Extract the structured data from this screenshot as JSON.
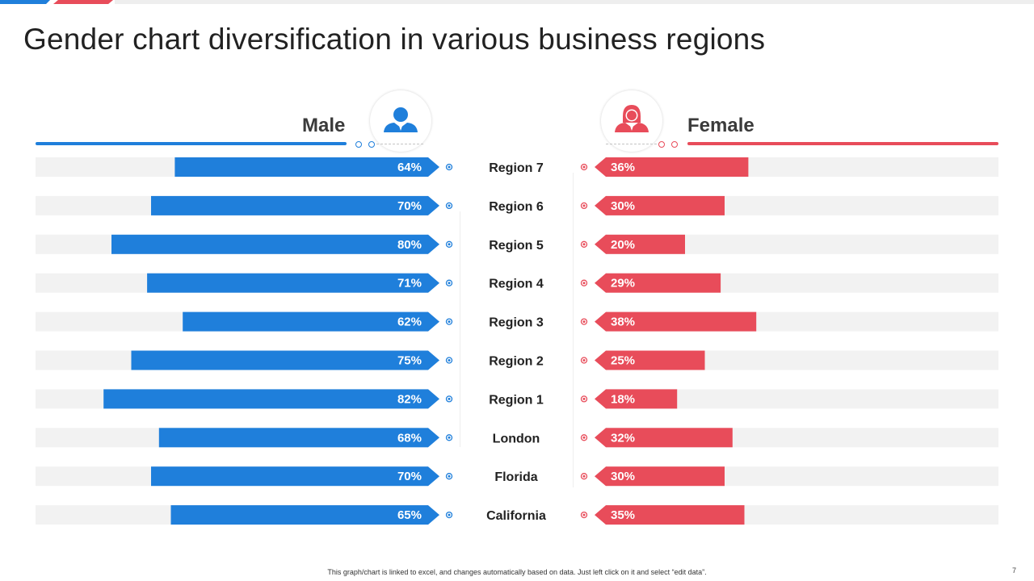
{
  "title": "Gender chart diversification in various business regions",
  "colors": {
    "male": "#1f7fdb",
    "female": "#e84c5a",
    "track": "#f2f2f2"
  },
  "legend": {
    "male_label": "Male",
    "female_label": "Female",
    "male_icon": "male-user-icon",
    "female_icon": "female-user-icon"
  },
  "chart_data": {
    "type": "bar",
    "orientation": "horizontal-butterfly",
    "categories": [
      "Region 7",
      "Region 6",
      "Region 5",
      "Region 4",
      "Region 3",
      "Region 2",
      "Region 1",
      "London",
      "Florida",
      "California"
    ],
    "series": [
      {
        "name": "Male",
        "values": [
          64,
          70,
          80,
          71,
          62,
          75,
          82,
          68,
          70,
          65
        ]
      },
      {
        "name": "Female",
        "values": [
          36,
          30,
          20,
          29,
          38,
          25,
          18,
          32,
          30,
          35
        ]
      }
    ],
    "unit": "%",
    "xlim": [
      0,
      100
    ]
  },
  "footer": "This graph/chart is linked to excel, and changes automatically based on data. Just left click on it and select “edit data”.",
  "page_number": "7"
}
